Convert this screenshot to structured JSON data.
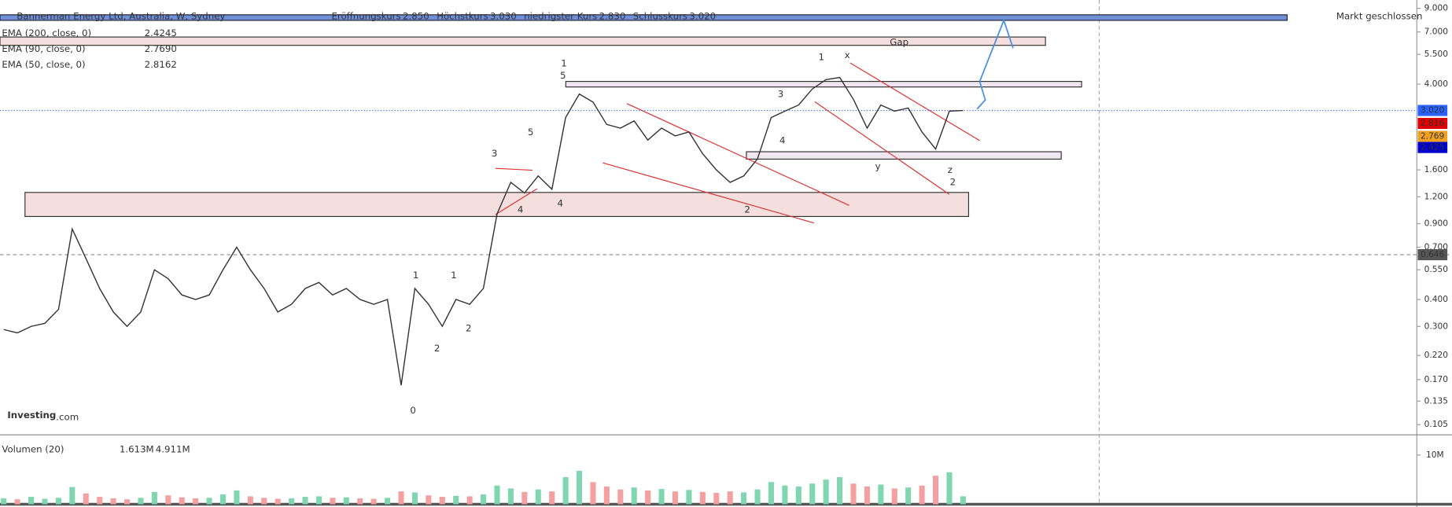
{
  "header": {
    "title": "Bannerman Energy Ltd, Australia, W, Sydney",
    "quotes": [
      [
        "Eröffnungskurs",
        "2.850"
      ],
      [
        "Höchstkurs",
        "3.030"
      ],
      [
        "niedrigster Kurs",
        "2.830"
      ],
      [
        "Schlusskurs",
        "3.020"
      ]
    ],
    "status": "Markt geschlossen",
    "indicators": [
      {
        "label": "EMA (200, close, 0)",
        "value": "2.4245",
        "color": "#0000cc"
      },
      {
        "label": "EMA (90, close, 0)",
        "value": "2.7690",
        "color": "#f0a020"
      },
      {
        "label": "EMA (50, close, 0)",
        "value": "2.8162",
        "color": "#e00000"
      }
    ],
    "price_tags": [
      {
        "label": "3.020",
        "value": 3.02,
        "color": "#2962ff"
      },
      {
        "label": "2.816",
        "value": 2.816,
        "color": "#e00000"
      },
      {
        "label": "2.769",
        "value": 2.769,
        "color": "#f0a020"
      },
      {
        "label": "2.425",
        "value": 2.425,
        "color": "#0000cc"
      },
      {
        "label": "0.646",
        "value": 0.646,
        "color": "#555"
      }
    ],
    "volume_title": "Volumen (20)",
    "volume_labels": [
      "1.613M",
      "4.911M"
    ],
    "logo": [
      "Investing",
      ".com"
    ]
  },
  "chart_data": {
    "type": "line",
    "log_scale": true,
    "categories": [
      null,
      null,
      null,
      null,
      null,
      null,
      null,
      null,
      null,
      null,
      null,
      null,
      null,
      null,
      null,
      null,
      null,
      null,
      null,
      null,
      null,
      null,
      null,
      null,
      null,
      null,
      null,
      null,
      null,
      null,
      null,
      null,
      null,
      null,
      null,
      null,
      null,
      null,
      null,
      null,
      null,
      null,
      null,
      null,
      null,
      null,
      null,
      null,
      null,
      null,
      null,
      null,
      null,
      null,
      null,
      null,
      null,
      null,
      null,
      null,
      null,
      null,
      null,
      null,
      null,
      null,
      null,
      null,
      null,
      null,
      null
    ],
    "series": [
      {
        "name": "Close",
        "color": "#333333",
        "values": [
          0.29,
          0.28,
          0.3,
          0.31,
          0.36,
          0.85,
          0.62,
          0.45,
          0.35,
          0.3,
          0.35,
          0.55,
          0.5,
          0.42,
          0.4,
          0.42,
          0.55,
          0.7,
          0.55,
          0.45,
          0.35,
          0.38,
          0.45,
          0.48,
          0.42,
          0.45,
          0.4,
          0.38,
          0.4,
          0.16,
          0.45,
          0.38,
          0.3,
          0.4,
          0.38,
          0.45,
          1.0,
          1.4,
          1.25,
          1.5,
          1.3,
          2.8,
          3.6,
          3.3,
          2.6,
          2.5,
          2.7,
          2.2,
          2.5,
          2.3,
          2.4,
          1.9,
          1.6,
          1.4,
          1.5,
          1.8,
          2.8,
          3.0,
          3.2,
          3.8,
          4.2,
          4.3,
          3.4,
          2.5,
          3.2,
          3.0,
          3.1,
          2.4,
          2.0,
          3.0,
          3.02
        ]
      }
    ],
    "volume": {
      "color_up": "#7fd6b0",
      "color_down": "#f4a0a0",
      "values": [
        1.2,
        1.0,
        1.5,
        1.1,
        1.3,
        3.5,
        2.2,
        1.5,
        1.2,
        1.0,
        1.3,
        2.5,
        1.8,
        1.4,
        1.2,
        1.3,
        2.0,
        2.8,
        1.6,
        1.3,
        1.1,
        1.2,
        1.5,
        1.6,
        1.3,
        1.4,
        1.2,
        1.1,
        1.3,
        2.6,
        2.4,
        1.8,
        1.5,
        1.7,
        1.6,
        2.0,
        3.8,
        3.2,
        2.5,
        3.0,
        2.6,
        5.5,
        6.8,
        4.5,
        3.6,
        3.0,
        3.4,
        2.8,
        3.1,
        2.6,
        2.9,
        2.5,
        2.3,
        2.6,
        2.4,
        3.0,
        4.5,
        3.8,
        3.6,
        4.2,
        5.0,
        5.5,
        4.2,
        3.6,
        4.0,
        3.2,
        3.4,
        3.8,
        5.8,
        6.5,
        1.613
      ]
    },
    "ylim": [
      0.096,
      9.84
    ],
    "yticks": [
      {
        "value": 9,
        "label": "9.000"
      },
      {
        "value": 7,
        "label": "7.000"
      },
      {
        "value": 5.5,
        "label": "5.500"
      },
      {
        "value": 4,
        "label": "4.000"
      },
      {
        "value": 1.6,
        "label": "1.600"
      },
      {
        "value": 1.2,
        "label": "1.200"
      },
      {
        "value": 0.9,
        "label": "0.900"
      },
      {
        "value": 0.7,
        "label": "0.700"
      },
      {
        "value": 0.55,
        "label": "0.550"
      },
      {
        "value": 0.4,
        "label": "0.400"
      },
      {
        "value": 0.3,
        "label": "0.300"
      },
      {
        "value": 0.22,
        "label": "0.220"
      },
      {
        "value": 0.17,
        "label": "0.170"
      },
      {
        "value": 0.135,
        "label": "0.135"
      },
      {
        "value": 0.105,
        "label": "0.105"
      }
    ],
    "vlim": [
      0,
      12.6
    ],
    "vticks": [
      {
        "value": 10,
        "label": "10M"
      }
    ],
    "annotations": [
      {
        "text": "Gap",
        "color": "#e00000"
      },
      {
        "text": "0",
        "color": "#e00000"
      },
      {
        "text": "1",
        "color": "#e00000"
      },
      {
        "text": "2",
        "color": "#e00000"
      },
      {
        "text": "1",
        "color": "#2e8b22"
      },
      {
        "text": "2",
        "color": "#2e8b22"
      },
      {
        "text": "x",
        "color": "#f0a020"
      },
      {
        "text": "y",
        "color": "#f0a020"
      },
      {
        "text": "z",
        "color": "#f0a020"
      },
      {
        "text": "3",
        "color": "#a020f0"
      },
      {
        "text": "5",
        "color": "#a020f0"
      },
      {
        "text": "4",
        "color": "#a020f0"
      },
      {
        "text": "1",
        "color": "#4a90e2"
      },
      {
        "text": "2",
        "color": "#4a90e2"
      },
      {
        "text": "3",
        "color": "#a020f0"
      },
      {
        "text": "4",
        "color": "#a020f0"
      },
      {
        "text": "1",
        "color": "#a020f0"
      },
      {
        "text": "2",
        "color": "#a020f0"
      },
      {
        "text": "5",
        "color": "#4a90e2"
      },
      {
        "text": "4",
        "color": "#4a90e2"
      }
    ]
  }
}
